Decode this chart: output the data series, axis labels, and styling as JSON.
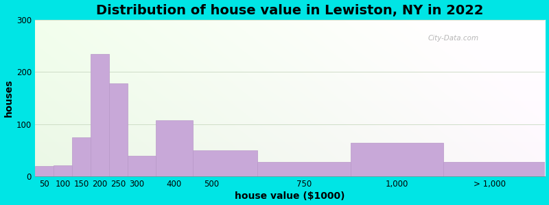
{
  "title": "Distribution of house value in Lewiston, NY in 2022",
  "xlabel": "house value ($1000)",
  "ylabel": "houses",
  "bar_labels": [
    "50",
    "100",
    "150",
    "200",
    "250",
    "300",
    "400",
    "500",
    "750",
    "1,000",
    "> 1,000"
  ],
  "bar_heights": [
    20,
    22,
    75,
    235,
    178,
    40,
    108,
    50,
    28,
    65,
    28
  ],
  "bar_color": "#c8a8d8",
  "bar_edge_color": "#b898c8",
  "ylim": [
    0,
    300
  ],
  "yticks": [
    0,
    100,
    200,
    300
  ],
  "outer_bg": "#00e5e5",
  "title_fontsize": 14,
  "axis_label_fontsize": 10,
  "tick_fontsize": 8.5,
  "watermark_text": "City-Data.com",
  "bin_edges": [
    25,
    75,
    125,
    175,
    225,
    275,
    350,
    450,
    625,
    875,
    1125,
    1400
  ],
  "tick_positions": [
    50,
    100,
    150,
    200,
    250,
    300,
    400,
    500,
    750,
    1000,
    1250
  ],
  "xmax": 1400
}
